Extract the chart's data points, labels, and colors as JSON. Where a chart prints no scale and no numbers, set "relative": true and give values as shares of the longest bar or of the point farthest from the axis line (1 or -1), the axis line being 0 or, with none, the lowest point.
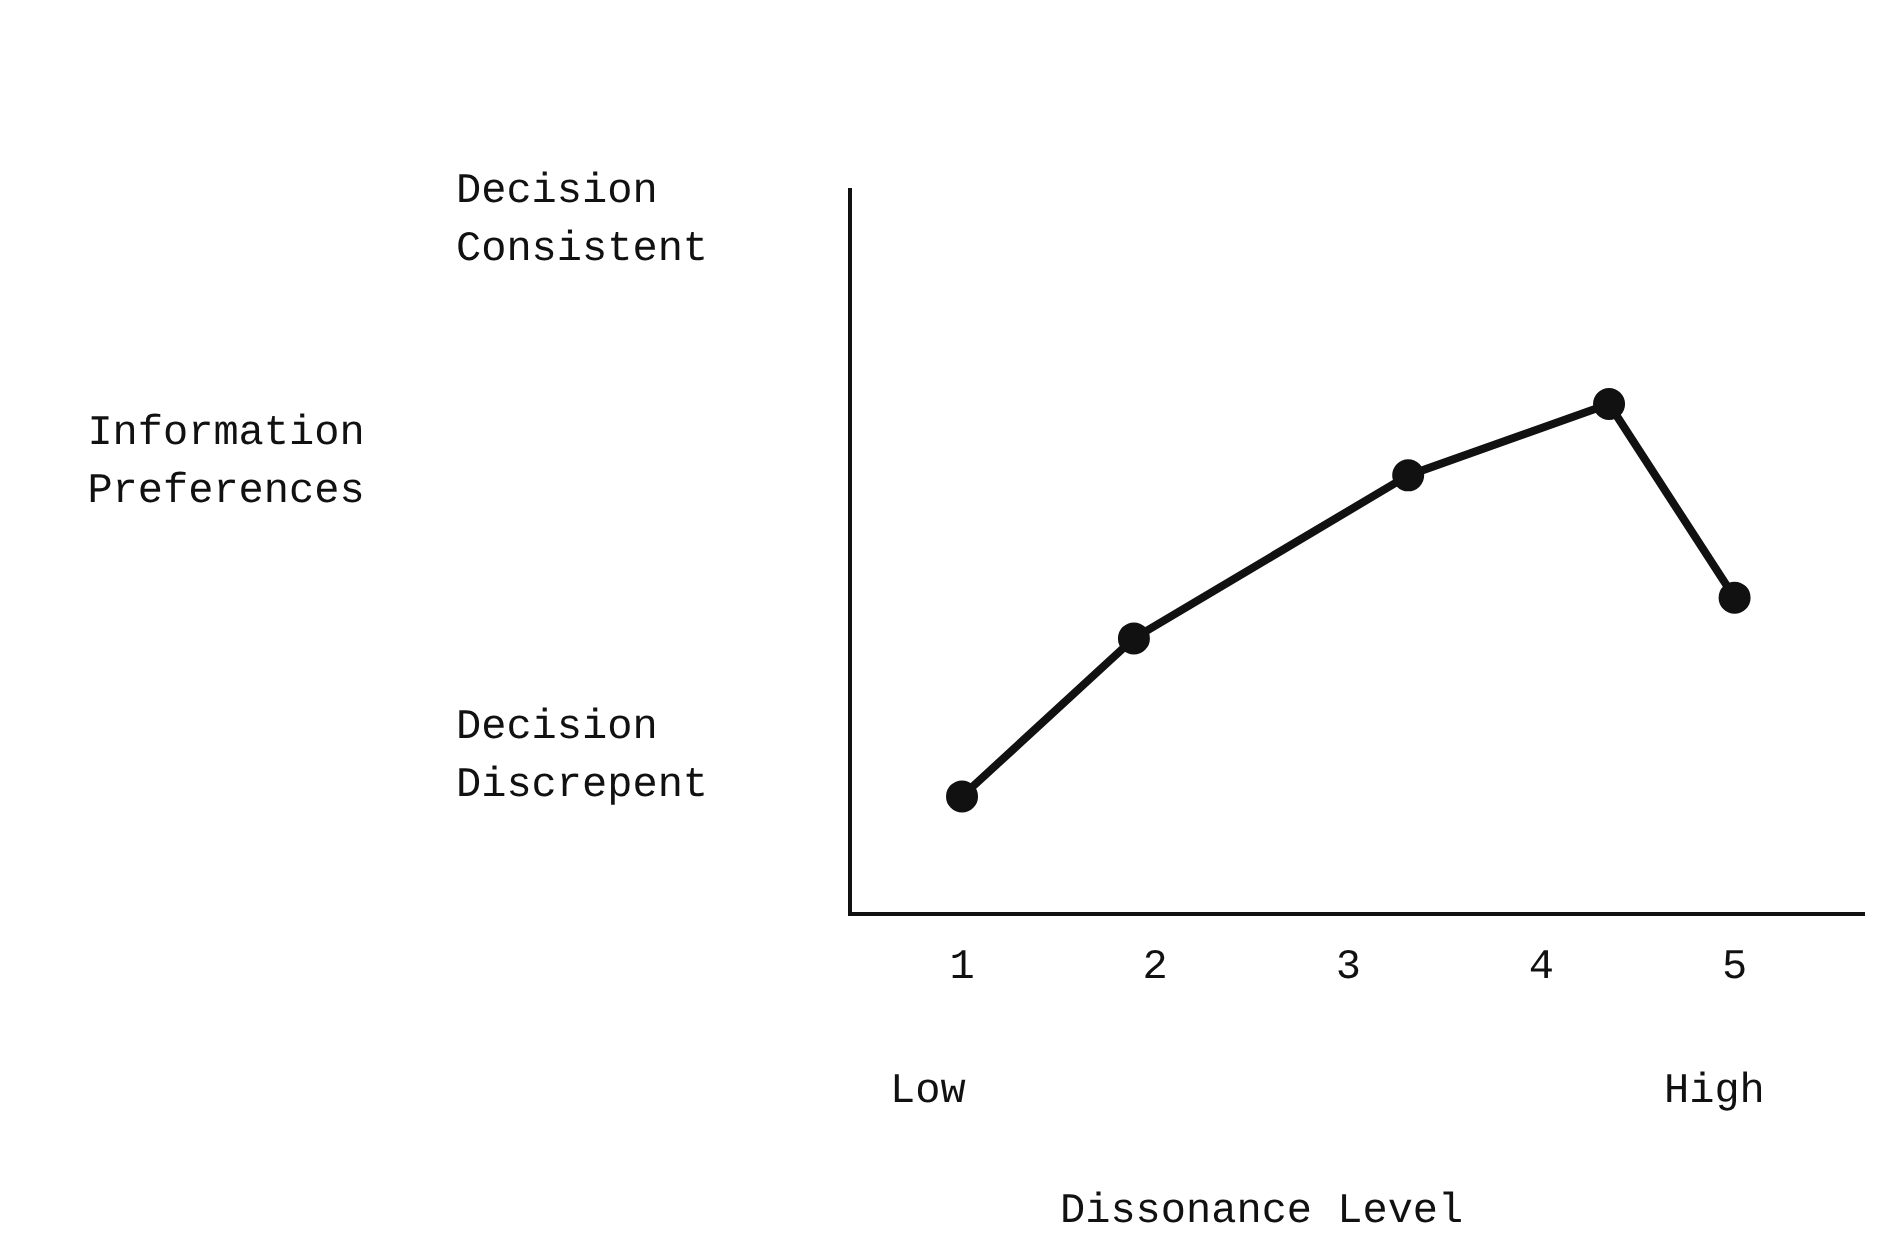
{
  "chart_data": {
    "type": "line",
    "xlabel": "Dissonance Level",
    "x": [
      1,
      1.89,
      3.31,
      4.35,
      5
    ],
    "values": [
      0.23,
      0.54,
      0.86,
      1,
      0.62
    ],
    "relative": true,
    "color": "#111111",
    "marker": "circle",
    "line_style": "solid",
    "xlim": [
      0.42,
      5.67
    ],
    "xticks": [
      1,
      2,
      3,
      4,
      5
    ],
    "grid": false,
    "legend": false,
    "annotations": [
      "Information Preferences",
      "Decision Consistent",
      "Decision Discrepent",
      "Low",
      "High"
    ]
  }
}
